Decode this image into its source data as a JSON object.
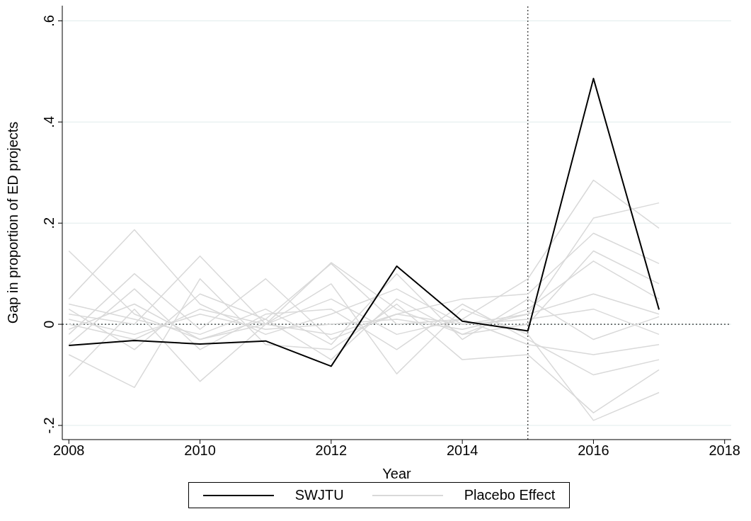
{
  "chart_data": {
    "type": "line",
    "xlabel": "Year",
    "ylabel": "Gap in proportion of ED projects",
    "x": [
      2008,
      2009,
      2010,
      2011,
      2012,
      2013,
      2014,
      2015,
      2016,
      2017
    ],
    "series": [
      {
        "name": "Placebo Effect",
        "color": "#d9d9d9",
        "values": [
          0.145,
          0.02,
          -0.03,
          0.01,
          0.12,
          0.0,
          0.01,
          0.09,
          0.285,
          0.19
        ]
      },
      {
        "color": "#d9d9d9",
        "values": [
          0.05,
          0.187,
          0.04,
          -0.02,
          0.02,
          0.07,
          0.0,
          0.02,
          0.21,
          0.24
        ]
      },
      {
        "color": "#d9d9d9",
        "values": [
          -0.02,
          0.1,
          -0.01,
          0.09,
          -0.03,
          0.02,
          0.05,
          0.06,
          0.18,
          0.12
        ]
      },
      {
        "color": "#d9d9d9",
        "values": [
          0.02,
          0.0,
          0.135,
          0.0,
          0.122,
          0.03,
          -0.02,
          0.0,
          0.145,
          0.08
        ]
      },
      {
        "color": "#d9d9d9",
        "values": [
          -0.103,
          0.03,
          -0.113,
          0.0,
          0.08,
          -0.098,
          0.03,
          -0.02,
          -0.19,
          -0.135
        ]
      },
      {
        "color": "#d9d9d9",
        "values": [
          -0.06,
          -0.125,
          0.09,
          -0.04,
          -0.05,
          0.04,
          -0.07,
          -0.06,
          -0.175,
          -0.09
        ]
      },
      {
        "color": "#d9d9d9",
        "values": [
          0.03,
          -0.05,
          0.06,
          0.01,
          -0.07,
          0.05,
          -0.02,
          0.03,
          0.125,
          0.05
        ]
      },
      {
        "color": "#d9d9d9",
        "values": [
          -0.04,
          0.07,
          -0.05,
          0.02,
          0.03,
          -0.05,
          0.04,
          -0.03,
          -0.1,
          -0.07
        ]
      },
      {
        "color": "#d9d9d9",
        "values": [
          0.01,
          -0.02,
          0.02,
          -0.01,
          0.0,
          0.01,
          -0.01,
          0.02,
          0.06,
          0.02
        ]
      },
      {
        "color": "#d9d9d9",
        "values": [
          -0.01,
          0.04,
          -0.03,
          0.0,
          0.05,
          -0.02,
          0.01,
          -0.04,
          -0.06,
          -0.04
        ]
      },
      {
        "color": "#d9d9d9",
        "values": [
          0.0,
          -0.03,
          0.03,
          0.0,
          -0.02,
          0.02,
          0.0,
          0.01,
          0.03,
          -0.02
        ]
      },
      {
        "color": "#d9d9d9",
        "values": [
          0.04,
          0.01,
          -0.02,
          0.03,
          -0.04,
          0.1,
          -0.03,
          0.05,
          -0.03,
          0.015
        ]
      },
      {
        "name": "SWJTU",
        "color": "#000000",
        "values": [
          -0.042,
          -0.032,
          -0.039,
          -0.033,
          -0.083,
          0.115,
          0.006,
          -0.013,
          0.486,
          0.029
        ]
      }
    ],
    "xlim": [
      2007.9,
      2018.1
    ],
    "xticks": [
      2008,
      2010,
      2012,
      2014,
      2016,
      2018
    ],
    "ylim": [
      -0.228,
      0.63
    ],
    "yticks": [
      {
        "value": -0.2,
        "label": "-.2"
      },
      {
        "value": 0,
        "label": "0"
      },
      {
        "value": 0.2,
        "label": ".2"
      },
      {
        "value": 0.4,
        "label": ".4"
      },
      {
        "value": 0.6,
        "label": ".6"
      }
    ],
    "grid": "y",
    "legend": "bottom",
    "marker": "none",
    "line_style": "solid",
    "ref_lines": [
      {
        "axis": "x",
        "value": 2015,
        "line_style": "dotted"
      },
      {
        "axis": "y",
        "value": 0,
        "line_style": "dotted"
      }
    ]
  }
}
